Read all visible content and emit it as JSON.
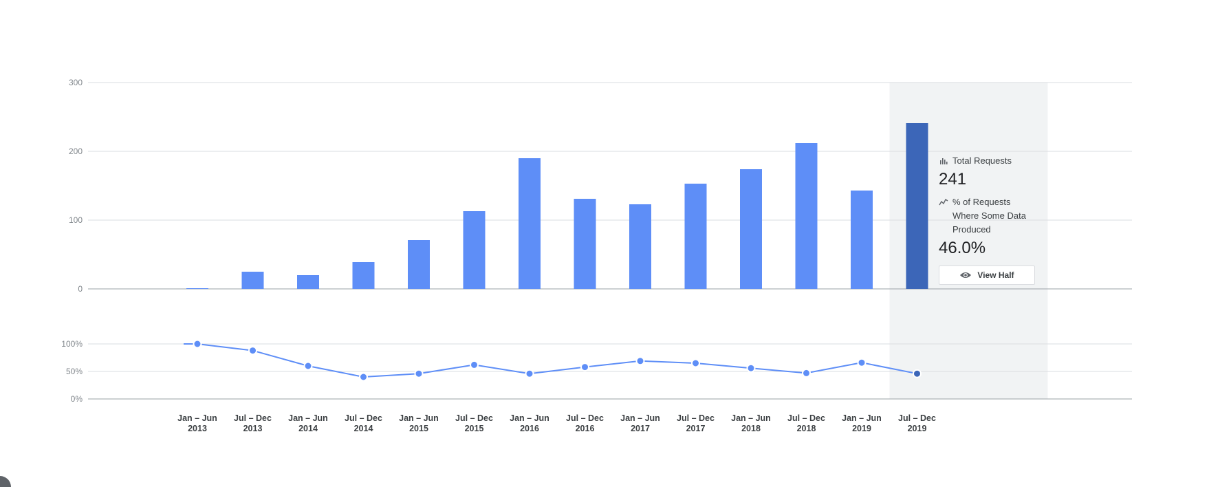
{
  "chart_data": {
    "type": "bar",
    "categories": [
      [
        "Jan – Jun",
        "2013"
      ],
      [
        "Jul – Dec",
        "2013"
      ],
      [
        "Jan – Jun",
        "2014"
      ],
      [
        "Jul – Dec",
        "2014"
      ],
      [
        "Jan – Jun",
        "2015"
      ],
      [
        "Jul – Dec",
        "2015"
      ],
      [
        "Jan – Jun",
        "2016"
      ],
      [
        "Jul – Dec",
        "2016"
      ],
      [
        "Jan – Jun",
        "2017"
      ],
      [
        "Jul – Dec",
        "2017"
      ],
      [
        "Jan – Jun",
        "2018"
      ],
      [
        "Jul – Dec",
        "2018"
      ],
      [
        "Jan – Jun",
        "2019"
      ],
      [
        "Jul – Dec",
        "2019"
      ]
    ],
    "series": [
      {
        "name": "Total Requests",
        "values": [
          1,
          25,
          20,
          39,
          71,
          113,
          190,
          131,
          123,
          153,
          174,
          212,
          143,
          241
        ]
      },
      {
        "name": "% of Requests Where Some Data Produced",
        "values": [
          100,
          88,
          60,
          40,
          46,
          62,
          46,
          58,
          69,
          65,
          56,
          47,
          66,
          46
        ]
      }
    ],
    "ylim": [
      0,
      300
    ],
    "yticks": [
      "0",
      "100",
      "200",
      "300"
    ],
    "ylim2": [
      0,
      100
    ],
    "yticks2": [
      "0%",
      "50%",
      "100%"
    ],
    "highlight_index": 13,
    "colors": {
      "bar": "#5e8ef7",
      "bar_highlight": "#3c66b8",
      "line": "#5e8ef7",
      "highlight_bg": "#f1f3f4"
    },
    "grid": true
  },
  "tooltip": {
    "metric1_label": "Total Requests",
    "metric1_value": "241",
    "metric2_label": "% of Requests Where Some Data Produced",
    "metric2_value": "46.0%",
    "button_label": "View Half"
  }
}
